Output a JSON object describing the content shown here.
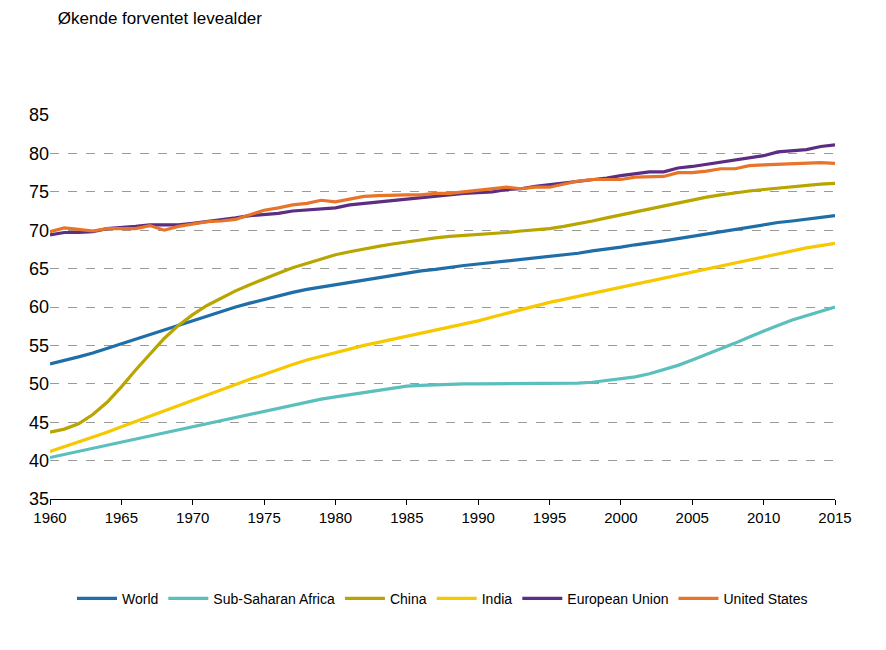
{
  "chart_data": {
    "type": "line",
    "title": "Økende forventet levealder",
    "x": [
      1960,
      1961,
      1962,
      1963,
      1964,
      1965,
      1966,
      1967,
      1968,
      1969,
      1970,
      1971,
      1972,
      1973,
      1974,
      1975,
      1976,
      1977,
      1978,
      1979,
      1980,
      1981,
      1982,
      1983,
      1984,
      1985,
      1986,
      1987,
      1988,
      1989,
      1990,
      1991,
      1992,
      1993,
      1994,
      1995,
      1996,
      1997,
      1998,
      1999,
      2000,
      2001,
      2002,
      2003,
      2004,
      2005,
      2006,
      2007,
      2008,
      2009,
      2010,
      2011,
      2012,
      2013,
      2014,
      2015
    ],
    "series": [
      {
        "name": "World",
        "color": "#1f6ea8",
        "values": [
          52.6,
          53.0,
          53.5,
          54.0,
          54.6,
          55.2,
          55.9,
          56.5,
          57.1,
          57.7,
          58.3,
          58.9,
          59.5,
          60.0,
          60.5,
          61.0,
          61.5,
          61.9,
          62.3,
          62.6,
          62.9,
          63.2,
          63.5,
          63.8,
          64.1,
          64.4,
          64.7,
          64.9,
          65.2,
          65.4,
          65.6,
          65.8,
          65.9,
          66.1,
          66.3,
          66.5,
          66.8,
          67.0,
          67.3,
          67.5,
          67.8,
          68.1,
          68.3,
          68.6,
          68.9,
          69.2,
          69.5,
          69.8,
          70.1,
          70.4,
          70.7,
          71.0,
          71.2,
          71.4,
          71.7,
          71.9
        ]
      },
      {
        "name": "Sub-Saharan Africa",
        "color": "#5bbfbd",
        "values": [
          40.4,
          40.8,
          41.2,
          41.7,
          42.1,
          42.5,
          42.9,
          43.3,
          43.7,
          44.1,
          44.5,
          44.9,
          45.3,
          45.7,
          46.1,
          46.5,
          46.9,
          47.3,
          47.6,
          48.0,
          48.3,
          48.6,
          48.9,
          49.2,
          49.5,
          49.7,
          49.8,
          49.9,
          49.9,
          50.0,
          50.0,
          50.0,
          50.0,
          50.0,
          50.0,
          50.0,
          50.0,
          50.1,
          50.2,
          50.4,
          50.6,
          50.9,
          51.3,
          51.8,
          52.4,
          53.1,
          53.8,
          54.5,
          55.3,
          56.1,
          56.9,
          57.6,
          58.3,
          58.9,
          59.5,
          60.0
        ]
      },
      {
        "name": "China",
        "color": "#b8a500",
        "values": [
          43.7,
          44.1,
          44.8,
          46.0,
          47.6,
          49.6,
          51.8,
          53.8,
          55.9,
          57.6,
          59.0,
          60.2,
          61.2,
          62.1,
          62.9,
          63.7,
          64.4,
          65.1,
          65.7,
          66.3,
          66.8,
          67.2,
          67.6,
          67.9,
          68.2,
          68.5,
          68.8,
          69.0,
          69.2,
          69.3,
          69.4,
          69.6,
          69.7,
          69.9,
          70.0,
          70.2,
          70.5,
          70.8,
          71.2,
          71.6,
          72.0,
          72.4,
          72.8,
          73.2,
          73.6,
          74.0,
          74.3,
          74.6,
          74.9,
          75.1,
          75.3,
          75.5,
          75.6,
          75.8,
          76.0,
          76.1
        ]
      },
      {
        "name": "India",
        "color": "#f6c800",
        "values": [
          41.2,
          41.8,
          42.4,
          43.0,
          43.7,
          44.4,
          45.1,
          45.7,
          46.4,
          47.1,
          47.8,
          48.5,
          49.2,
          49.9,
          50.6,
          51.2,
          51.9,
          52.5,
          53.1,
          53.6,
          54.1,
          54.6,
          55.0,
          55.4,
          55.8,
          56.1,
          56.5,
          57.0,
          57.4,
          57.8,
          58.2,
          58.7,
          59.2,
          59.7,
          60.2,
          60.6,
          61.0,
          61.4,
          61.8,
          62.2,
          62.6,
          63.0,
          63.4,
          63.8,
          64.2,
          64.6,
          65.0,
          65.4,
          65.8,
          66.2,
          66.6,
          67.0,
          67.3,
          67.7,
          68.0,
          68.3
        ]
      },
      {
        "name": "European Union",
        "color": "#5c2d82",
        "values": [
          69.4,
          69.7,
          69.7,
          69.8,
          70.2,
          70.3,
          70.5,
          70.7,
          70.7,
          70.7,
          70.9,
          71.1,
          71.4,
          71.6,
          71.9,
          72.0,
          72.2,
          72.5,
          72.6,
          72.8,
          72.9,
          73.3,
          73.5,
          73.6,
          73.9,
          74.0,
          74.3,
          74.5,
          74.7,
          74.8,
          74.9,
          75.0,
          75.3,
          75.4,
          75.7,
          75.9,
          76.1,
          76.4,
          76.6,
          76.8,
          77.1,
          77.4,
          77.6,
          77.6,
          78.1,
          78.3,
          78.6,
          78.8,
          79.1,
          79.4,
          79.7,
          80.2,
          80.3,
          80.5,
          80.9,
          81.1
        ]
      },
      {
        "name": "United States",
        "color": "#e8742a",
        "values": [
          69.8,
          70.3,
          70.1,
          69.9,
          70.2,
          70.2,
          70.2,
          70.6,
          70.0,
          70.5,
          70.8,
          71.1,
          71.2,
          71.4,
          72.0,
          72.6,
          72.9,
          73.3,
          73.5,
          73.9,
          73.7,
          74.1,
          74.4,
          74.5,
          74.6,
          74.6,
          74.6,
          74.8,
          74.8,
          75.0,
          75.2,
          75.4,
          75.6,
          75.4,
          75.6,
          75.6,
          76.0,
          76.4,
          76.6,
          76.6,
          76.6,
          76.9,
          76.9,
          77.0,
          77.5,
          77.5,
          77.7,
          78.0,
          78.0,
          78.4,
          78.5,
          78.6,
          78.7,
          78.7,
          78.8,
          78.7
        ]
      }
    ],
    "xlim": [
      1960,
      2015
    ],
    "xticks": [
      1960,
      1965,
      1970,
      1975,
      1980,
      1985,
      1990,
      1995,
      2000,
      2005,
      2010,
      2015
    ],
    "ylim": [
      35,
      85
    ],
    "yticks": [
      35,
      40,
      45,
      50,
      55,
      60,
      65,
      70,
      75,
      80,
      85
    ],
    "grid": true,
    "legend": "bottom"
  }
}
